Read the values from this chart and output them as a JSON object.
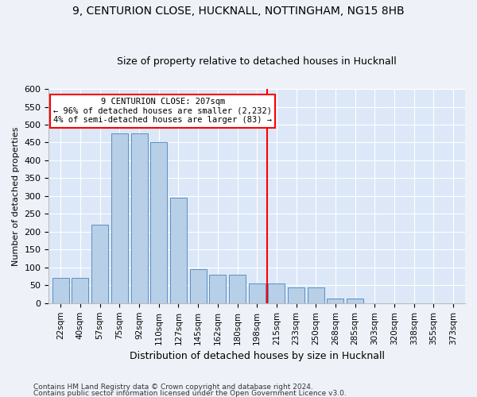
{
  "title1": "9, CENTURION CLOSE, HUCKNALL, NOTTINGHAM, NG15 8HB",
  "title2": "Size of property relative to detached houses in Hucknall",
  "xlabel": "Distribution of detached houses by size in Hucknall",
  "ylabel": "Number of detached properties",
  "categories": [
    "22sqm",
    "40sqm",
    "57sqm",
    "75sqm",
    "92sqm",
    "110sqm",
    "127sqm",
    "145sqm",
    "162sqm",
    "180sqm",
    "198sqm",
    "215sqm",
    "233sqm",
    "250sqm",
    "268sqm",
    "285sqm",
    "303sqm",
    "320sqm",
    "338sqm",
    "355sqm",
    "373sqm"
  ],
  "values": [
    70,
    70,
    220,
    475,
    475,
    450,
    295,
    95,
    80,
    80,
    55,
    55,
    45,
    45,
    12,
    12,
    0,
    0,
    0,
    0,
    0
  ],
  "bar_color": "#b8cfe8",
  "bar_edge_color": "#5a8fc0",
  "vline_x": 10.5,
  "annotation_line1": "9 CENTURION CLOSE: 207sqm",
  "annotation_line2": "← 96% of detached houses are smaller (2,232)",
  "annotation_line3": "4% of semi-detached houses are larger (83) →",
  "footer1": "Contains HM Land Registry data © Crown copyright and database right 2024.",
  "footer2": "Contains public sector information licensed under the Open Government Licence v3.0.",
  "ylim": [
    0,
    600
  ],
  "yticks": [
    0,
    50,
    100,
    150,
    200,
    250,
    300,
    350,
    400,
    450,
    500,
    550,
    600
  ],
  "bg_color": "#eef2f8",
  "plot_bg": "#dce8f8"
}
